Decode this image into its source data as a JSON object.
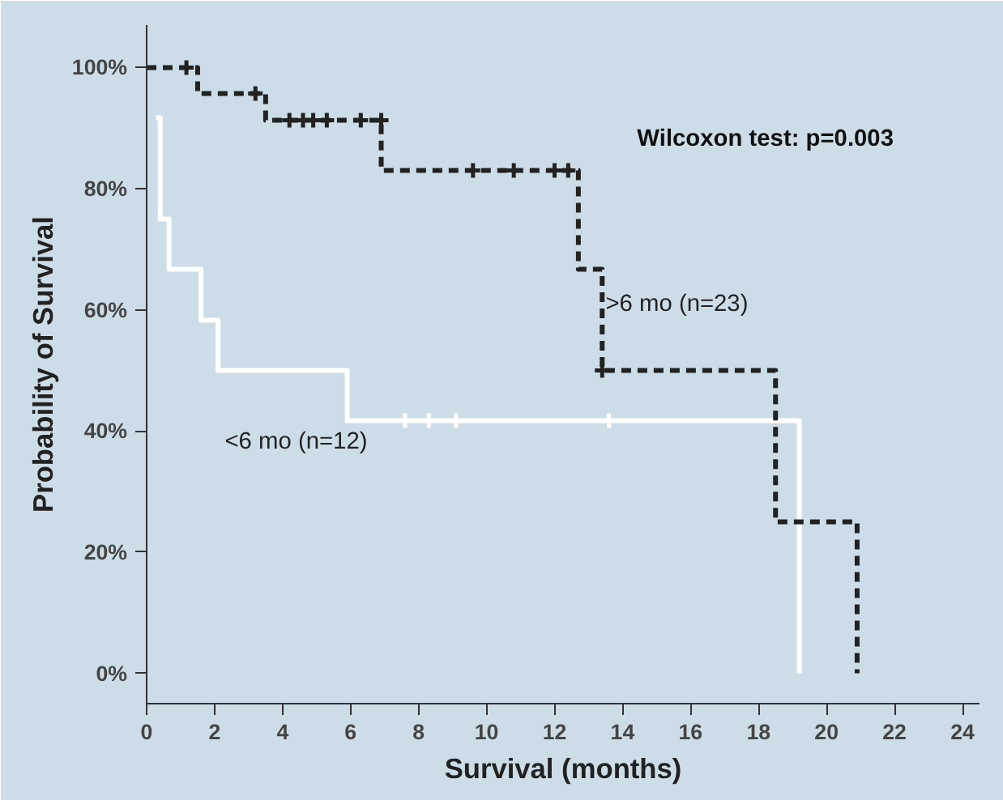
{
  "chart_data": {
    "type": "step",
    "xlabel": "Survival (months)",
    "ylabel": "Probability of Survival",
    "annotations": [
      "Wilcoxon test: p=0.003"
    ],
    "xlim": [
      0,
      24.5
    ],
    "xticks": [
      0,
      2,
      4,
      6,
      8,
      10,
      12,
      14,
      16,
      18,
      20,
      22,
      24
    ],
    "ylim": [
      -5,
      107
    ],
    "yticks": [
      {
        "value": 0,
        "label": "0%"
      },
      {
        "value": 20,
        "label": "20%"
      },
      {
        "value": 40,
        "label": "40%"
      },
      {
        "value": 60,
        "label": "60%"
      },
      {
        "value": 80,
        "label": "80%"
      },
      {
        "value": 100,
        "label": "100%"
      }
    ],
    "grid": false,
    "series": [
      {
        "name": "<6 mo (n=12)",
        "color": "#ffffff",
        "line_style": "solid",
        "x": [
          0.28,
          0.4,
          0.66,
          1.6,
          2.1,
          5.9,
          19.2
        ],
        "values": [
          91.7,
          75,
          66.7,
          58.3,
          50,
          41.7,
          0
        ]
      },
      {
        "name": ">6 mo (n=23)",
        "color": "#222222",
        "line_style": "dashed",
        "x": [
          0,
          1.5,
          3.5,
          6.9,
          12.7,
          13.4,
          18.5,
          20.9
        ],
        "values": [
          100,
          95.7,
          91.3,
          83,
          66.7,
          50,
          25,
          0
        ]
      },
      {
        "type": "scatter",
        "marker": "cross",
        "color": "#ffffff",
        "x": [
          7.6,
          8.3,
          9.1,
          13.6
        ],
        "values": [
          41.7,
          41.7,
          41.7,
          41.7
        ]
      },
      {
        "type": "scatter",
        "marker": "cross",
        "color": "#222222",
        "x": [
          1.17,
          3.2,
          4.2,
          4.6,
          4.9,
          5.3,
          6.3,
          6.9,
          9.6,
          10.8,
          12.0,
          12.4,
          13.4
        ],
        "values": [
          100,
          95.7,
          91.3,
          91.3,
          91.3,
          91.3,
          91.3,
          91.3,
          83,
          83,
          83,
          83,
          50
        ]
      }
    ]
  }
}
